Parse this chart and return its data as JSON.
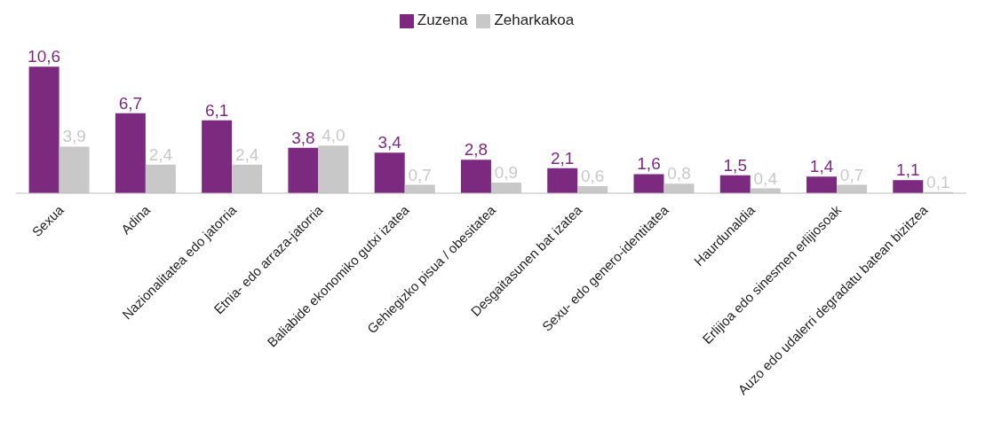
{
  "chart_data": {
    "type": "bar",
    "categories": [
      "Sexua",
      "Adina",
      "Nazionalitatea edo jatorria",
      "Etnia- edo arraza-jatorria",
      "Baliabide ekonomiko gutxi izatea",
      "Gehiegizko pisua / obesitatea",
      "Desgaitasunen bat izatea",
      "Sexu- edo genero-identitatea",
      "Haurdunaldia",
      "Erlijioa edo sinesmen erlijiosoak",
      "Auzo edo udalerri degradatu batean bizitzea"
    ],
    "series": [
      {
        "name": "Zuzena",
        "color": "#7b2a80",
        "values": [
          10.6,
          6.7,
          6.1,
          3.8,
          3.4,
          2.8,
          2.1,
          1.6,
          1.5,
          1.4,
          1.1
        ],
        "value_labels": [
          "10,6",
          "6,7",
          "6,1",
          "3,8",
          "3,4",
          "2,8",
          "2,1",
          "1,6",
          "1,5",
          "1,4",
          "1,1"
        ]
      },
      {
        "name": "Zeharkakoa",
        "color": "#c8c8c8",
        "values": [
          3.9,
          2.4,
          2.4,
          4.0,
          0.7,
          0.9,
          0.6,
          0.8,
          0.4,
          0.7,
          0.1
        ],
        "value_labels": [
          "3,9",
          "2,4",
          "2,4",
          "4,0",
          "0,7",
          "0,9",
          "0,6",
          "0,8",
          "0,4",
          "0,7",
          "0,1"
        ]
      }
    ],
    "legend": "top",
    "grid": false
  }
}
